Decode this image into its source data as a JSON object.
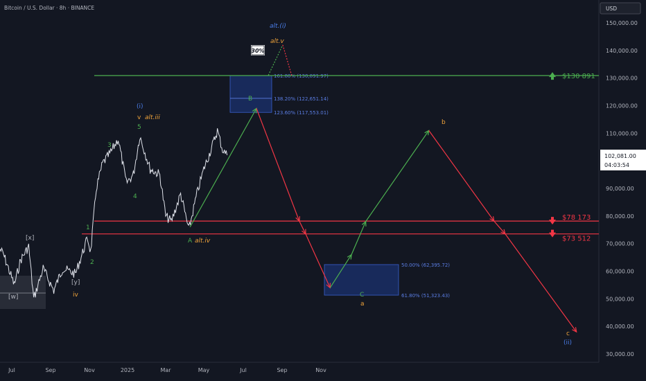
{
  "header": {
    "symbol_text": "Bitcoin / U.S. Dollar · 8h · BINANCE"
  },
  "price_scale": {
    "currency": "USD",
    "ticks": [
      "150,000.00",
      "140,000.00",
      "130,000.00",
      "120,000.00",
      "110,000.00",
      "100,000.00",
      "90,000.00",
      "80,000.00",
      "70,000.00",
      "60,000.00",
      "50,000.00",
      "40,000.00",
      "30,000.00"
    ],
    "current_price": "102,081.00",
    "countdown": "04:03:54"
  },
  "time_scale": {
    "ticks": [
      "Jul",
      "Sep",
      "Nov",
      "2025",
      "Mar",
      "May",
      "Jul",
      "Sep",
      "Nov"
    ]
  },
  "levels": [
    {
      "label": "$130 891",
      "price": 130891,
      "color": "#4caf50",
      "arrow": "up"
    },
    {
      "label": "$78 173",
      "price": 78173,
      "color": "#f23645",
      "arrow": "down"
    },
    {
      "label": "$73 512",
      "price": 73512,
      "color": "#f23645",
      "arrow": "down"
    }
  ],
  "zones": [
    {
      "name": "upper-target-zone",
      "price_top": 130891,
      "price_bottom": 117553,
      "fib_labels": [
        "161.80% (130,891.97)",
        "138.20% (122,651.14)",
        "123.60% (117,553.01)"
      ],
      "fib_prices": [
        130891,
        122651,
        117553
      ]
    },
    {
      "name": "lower-target-zone",
      "price_top": 62395,
      "price_bottom": 51323,
      "fib_labels": [
        "50.00% (62,395.72)",
        "61.80% (51,323.43)"
      ],
      "fib_prices": [
        62395,
        51323
      ]
    }
  ],
  "wave_labels": {
    "alt_i": "alt.(i)",
    "alt_v": "alt.v",
    "pct": "30%",
    "i": "(i)",
    "v": "v",
    "alt_iii": "alt.iii",
    "five": "5",
    "three": "3",
    "four": "4",
    "one": "1",
    "two": "2",
    "x": "[x]",
    "y": "[y]",
    "w": "[w]",
    "iv": "iv",
    "A": "A",
    "alt_iv": "alt.iv",
    "B": "B",
    "C": "C",
    "a": "a",
    "b": "b",
    "c": "c",
    "ii": "(ii)"
  },
  "chart_data": {
    "type": "line",
    "title": "Bitcoin / U.S. Dollar · 8h · BINANCE",
    "currency": "USD",
    "x_ticks": [
      "Jul",
      "Sep",
      "Nov",
      "2025",
      "Mar",
      "May",
      "Jul",
      "Sep",
      "Nov"
    ],
    "y_ticks": [
      30000,
      40000,
      50000,
      60000,
      70000,
      80000,
      90000,
      100000,
      110000,
      120000,
      130000,
      140000,
      150000
    ],
    "ylim": [
      27000,
      156000
    ],
    "grid": false,
    "price_path": [
      {
        "date": "2024-06-01",
        "price": 68000
      },
      {
        "date": "2024-06-10",
        "price": 66000
      },
      {
        "date": "2024-06-20",
        "price": 62000
      },
      {
        "date": "2024-07-05",
        "price": 55000
      },
      {
        "date": "2024-07-15",
        "price": 64000
      },
      {
        "date": "2024-07-28",
        "price": 69000
      },
      {
        "date": "2024-08-05",
        "price": 50000
      },
      {
        "date": "2024-08-20",
        "price": 61000
      },
      {
        "date": "2024-09-06",
        "price": 53000
      },
      {
        "date": "2024-09-20",
        "price": 61000
      },
      {
        "date": "2024-10-10",
        "price": 59000
      },
      {
        "date": "2024-10-29",
        "price": 72000
      },
      {
        "date": "2024-11-03",
        "price": 67000
      },
      {
        "date": "2024-11-12",
        "price": 90000
      },
      {
        "date": "2024-11-22",
        "price": 99000
      },
      {
        "date": "2024-12-05",
        "price": 103000
      },
      {
        "date": "2024-12-17",
        "price": 108000
      },
      {
        "date": "2024-12-30",
        "price": 92000
      },
      {
        "date": "2025-01-10",
        "price": 95000
      },
      {
        "date": "2025-01-20",
        "price": 109000
      },
      {
        "date": "2025-02-05",
        "price": 97000
      },
      {
        "date": "2025-02-20",
        "price": 95000
      },
      {
        "date": "2025-03-01",
        "price": 80000
      },
      {
        "date": "2025-03-10",
        "price": 78000
      },
      {
        "date": "2025-03-25",
        "price": 88000
      },
      {
        "date": "2025-04-07",
        "price": 75000
      },
      {
        "date": "2025-04-20",
        "price": 88000
      },
      {
        "date": "2025-05-01",
        "price": 97000
      },
      {
        "date": "2025-05-12",
        "price": 104000
      },
      {
        "date": "2025-05-22",
        "price": 111000
      },
      {
        "date": "2025-05-30",
        "price": 104000
      },
      {
        "date": "2025-06-06",
        "price": 102081
      }
    ],
    "projection_paths": [
      {
        "name": "A-to-B",
        "color": "green",
        "points": [
          {
            "date": "2025-04-09",
            "price": 76000
          },
          {
            "date": "2025-07-22",
            "price": 119000
          }
        ]
      },
      {
        "name": "B-to-C",
        "color": "red",
        "points": [
          {
            "date": "2025-07-22",
            "price": 119000
          },
          {
            "date": "2025-09-28",
            "price": 78173
          },
          {
            "date": "2025-10-08",
            "price": 73512
          },
          {
            "date": "2025-11-10",
            "price": 54000
          }
        ]
      },
      {
        "name": "C-to-b",
        "color": "green",
        "points": [
          {
            "date": "2025-11-10",
            "price": 54000
          },
          {
            "date": "2025-12-01",
            "price": 66000
          },
          {
            "date": "2025-12-15",
            "price": 78000
          },
          {
            "date": "2026-02-15",
            "price": 111000
          }
        ]
      },
      {
        "name": "b-to-c",
        "color": "red",
        "points": [
          {
            "date": "2026-02-15",
            "price": 111000
          },
          {
            "date": "2026-04-20",
            "price": 78173
          },
          {
            "date": "2026-05-01",
            "price": 73512
          },
          {
            "date": "2026-07-10",
            "price": 38000
          }
        ]
      },
      {
        "name": "alt-v-up",
        "color": "green-dotted",
        "points": [
          {
            "date": "2025-08-10",
            "price": 131000
          },
          {
            "date": "2025-09-02",
            "price": 142000
          }
        ]
      },
      {
        "name": "alt-v-down",
        "color": "red-dotted",
        "points": [
          {
            "date": "2025-09-02",
            "price": 142000
          },
          {
            "date": "2025-09-16",
            "price": 131000
          }
        ]
      }
    ],
    "levels": [
      130891,
      78173,
      73512
    ],
    "current_price": 102081
  }
}
